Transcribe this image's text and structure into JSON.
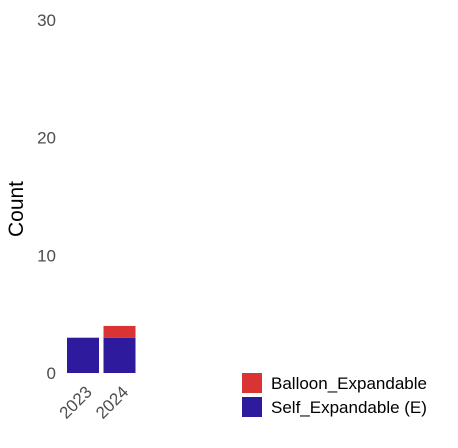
{
  "chart_data": {
    "type": "bar",
    "stacked": true,
    "categories": [
      "2023",
      "2024"
    ],
    "series": [
      {
        "name": "Self_Expandable (E)",
        "values": [
          3,
          3
        ],
        "color": "#2e1a9c"
      },
      {
        "name": "Balloon_Expandable",
        "values": [
          0,
          1
        ],
        "color": "#d93333"
      }
    ],
    "title": "",
    "xlabel": "",
    "ylabel": "Count",
    "ylim": [
      0,
      30
    ],
    "y_ticks": [
      0,
      10,
      20,
      30
    ],
    "grid": false,
    "legend_position": "bottom-right"
  }
}
